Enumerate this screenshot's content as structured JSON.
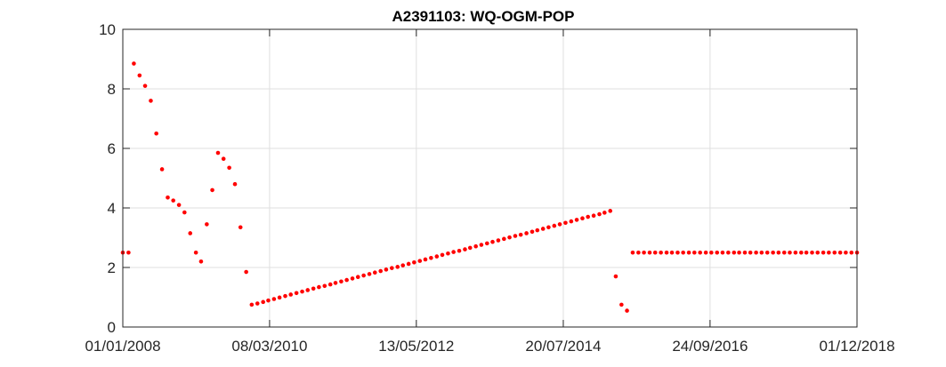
{
  "chart_data": {
    "type": "scatter",
    "title": "A2391103: WQ-OGM-POP",
    "xlabel": "",
    "ylabel": "",
    "xlim": [
      "2008-01-01",
      "2018-12-01"
    ],
    "ylim": [
      0,
      10
    ],
    "grid": true,
    "marker_color": "#ff0000",
    "x_ticks": [
      "01/01/2008",
      "08/03/2010",
      "13/05/2012",
      "20/07/2014",
      "24/09/2016",
      "01/12/2018"
    ],
    "y_ticks": [
      "0",
      "2",
      "4",
      "6",
      "8",
      "10"
    ],
    "series": [
      {
        "points": [
          [
            "2008-01-01",
            2.5
          ],
          [
            "2008-02-01",
            2.5
          ],
          [
            "2008-03-01",
            8.85
          ],
          [
            "2008-04-01",
            8.45
          ],
          [
            "2008-05-01",
            8.1
          ],
          [
            "2008-06-01",
            7.6
          ],
          [
            "2008-07-01",
            6.5
          ],
          [
            "2008-08-01",
            5.3
          ],
          [
            "2008-09-01",
            4.35
          ],
          [
            "2008-10-01",
            4.25
          ],
          [
            "2008-11-01",
            4.1
          ],
          [
            "2008-12-01",
            3.85
          ],
          [
            "2009-01-01",
            3.15
          ],
          [
            "2009-02-01",
            2.5
          ],
          [
            "2009-03-01",
            2.2
          ],
          [
            "2009-04-01",
            3.45
          ],
          [
            "2009-05-01",
            4.6
          ],
          [
            "2009-06-01",
            5.85
          ],
          [
            "2009-07-01",
            5.65
          ],
          [
            "2009-08-01",
            5.35
          ],
          [
            "2009-09-01",
            4.8
          ],
          [
            "2009-10-01",
            3.35
          ],
          [
            "2009-11-01",
            1.85
          ],
          [
            "2009-12-01",
            0.75
          ],
          [
            "2010-01-01",
            0.79
          ],
          [
            "2010-02-01",
            0.84
          ],
          [
            "2010-03-01",
            0.89
          ],
          [
            "2010-04-01",
            0.94
          ],
          [
            "2010-05-01",
            0.99
          ],
          [
            "2010-06-01",
            1.04
          ],
          [
            "2010-07-01",
            1.09
          ],
          [
            "2010-08-01",
            1.14
          ],
          [
            "2010-09-01",
            1.19
          ],
          [
            "2010-10-01",
            1.24
          ],
          [
            "2010-11-01",
            1.29
          ],
          [
            "2010-12-01",
            1.34
          ],
          [
            "2011-01-01",
            1.38
          ],
          [
            "2011-02-01",
            1.43
          ],
          [
            "2011-03-01",
            1.48
          ],
          [
            "2011-04-01",
            1.53
          ],
          [
            "2011-05-01",
            1.58
          ],
          [
            "2011-06-01",
            1.63
          ],
          [
            "2011-07-01",
            1.68
          ],
          [
            "2011-08-01",
            1.73
          ],
          [
            "2011-09-01",
            1.78
          ],
          [
            "2011-10-01",
            1.83
          ],
          [
            "2011-11-01",
            1.88
          ],
          [
            "2011-12-01",
            1.93
          ],
          [
            "2012-01-01",
            1.98
          ],
          [
            "2012-02-01",
            2.02
          ],
          [
            "2012-03-01",
            2.07
          ],
          [
            "2012-04-01",
            2.12
          ],
          [
            "2012-05-01",
            2.17
          ],
          [
            "2012-06-01",
            2.22
          ],
          [
            "2012-07-01",
            2.27
          ],
          [
            "2012-08-01",
            2.32
          ],
          [
            "2012-09-01",
            2.37
          ],
          [
            "2012-10-01",
            2.42
          ],
          [
            "2012-11-01",
            2.47
          ],
          [
            "2012-12-01",
            2.52
          ],
          [
            "2013-01-01",
            2.56
          ],
          [
            "2013-02-01",
            2.61
          ],
          [
            "2013-03-01",
            2.66
          ],
          [
            "2013-04-01",
            2.71
          ],
          [
            "2013-05-01",
            2.76
          ],
          [
            "2013-06-01",
            2.81
          ],
          [
            "2013-07-01",
            2.86
          ],
          [
            "2013-08-01",
            2.91
          ],
          [
            "2013-09-01",
            2.96
          ],
          [
            "2013-10-01",
            3.01
          ],
          [
            "2013-11-01",
            3.06
          ],
          [
            "2013-12-01",
            3.1
          ],
          [
            "2014-01-01",
            3.15
          ],
          [
            "2014-02-01",
            3.2
          ],
          [
            "2014-03-01",
            3.25
          ],
          [
            "2014-04-01",
            3.3
          ],
          [
            "2014-05-01",
            3.35
          ],
          [
            "2014-06-01",
            3.4
          ],
          [
            "2014-07-01",
            3.45
          ],
          [
            "2014-08-01",
            3.5
          ],
          [
            "2014-09-01",
            3.55
          ],
          [
            "2014-10-01",
            3.6
          ],
          [
            "2014-11-01",
            3.65
          ],
          [
            "2014-12-01",
            3.7
          ],
          [
            "2015-01-01",
            3.74
          ],
          [
            "2015-02-01",
            3.79
          ],
          [
            "2015-03-01",
            3.84
          ],
          [
            "2015-04-01",
            3.9
          ],
          [
            "2015-05-01",
            1.7
          ],
          [
            "2015-06-01",
            0.75
          ],
          [
            "2015-07-01",
            0.55
          ],
          [
            "2015-08-01",
            2.5
          ],
          [
            "2015-09-01",
            2.5
          ],
          [
            "2015-10-01",
            2.5
          ],
          [
            "2015-11-01",
            2.5
          ],
          [
            "2015-12-01",
            2.5
          ],
          [
            "2016-01-01",
            2.5
          ],
          [
            "2016-02-01",
            2.5
          ],
          [
            "2016-03-01",
            2.5
          ],
          [
            "2016-04-01",
            2.5
          ],
          [
            "2016-05-01",
            2.5
          ],
          [
            "2016-06-01",
            2.5
          ],
          [
            "2016-07-01",
            2.5
          ],
          [
            "2016-08-01",
            2.5
          ],
          [
            "2016-09-01",
            2.5
          ],
          [
            "2016-10-01",
            2.5
          ],
          [
            "2016-11-01",
            2.5
          ],
          [
            "2016-12-01",
            2.5
          ],
          [
            "2017-01-01",
            2.5
          ],
          [
            "2017-02-01",
            2.5
          ],
          [
            "2017-03-01",
            2.5
          ],
          [
            "2017-04-01",
            2.5
          ],
          [
            "2017-05-01",
            2.5
          ],
          [
            "2017-06-01",
            2.5
          ],
          [
            "2017-07-01",
            2.5
          ],
          [
            "2017-08-01",
            2.5
          ],
          [
            "2017-09-01",
            2.5
          ],
          [
            "2017-10-01",
            2.5
          ],
          [
            "2017-11-01",
            2.5
          ],
          [
            "2017-12-01",
            2.5
          ],
          [
            "2018-01-01",
            2.5
          ],
          [
            "2018-02-01",
            2.5
          ],
          [
            "2018-03-01",
            2.5
          ],
          [
            "2018-04-01",
            2.5
          ],
          [
            "2018-05-01",
            2.5
          ],
          [
            "2018-06-01",
            2.5
          ],
          [
            "2018-07-01",
            2.5
          ],
          [
            "2018-08-01",
            2.5
          ],
          [
            "2018-09-01",
            2.5
          ],
          [
            "2018-10-01",
            2.5
          ],
          [
            "2018-11-01",
            2.5
          ],
          [
            "2018-12-01",
            2.5
          ]
        ]
      }
    ]
  }
}
